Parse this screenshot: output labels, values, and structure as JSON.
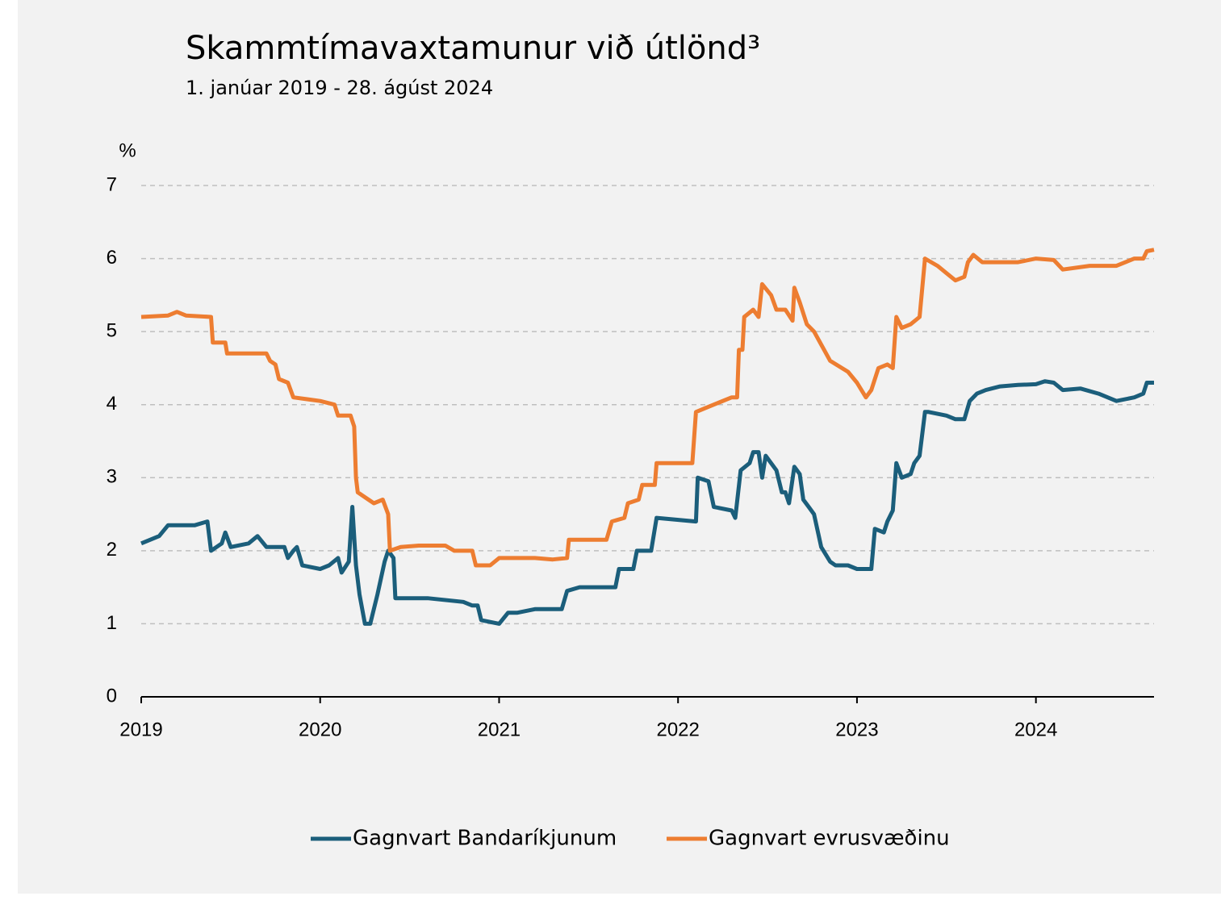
{
  "chart_data": {
    "type": "line",
    "title": "Skammtímavaxtamunur við útlönd³",
    "subtitle": "1. janúar 2019 - 28. ágúst 2024",
    "y_label": "%",
    "xlim": [
      2019,
      2024.66
    ],
    "xticks": [
      2019,
      2020,
      2021,
      2022,
      2023,
      2024
    ],
    "ylim": [
      0,
      7
    ],
    "yticks": [
      0,
      1,
      2,
      3,
      4,
      5,
      6,
      7
    ],
    "grid": true,
    "legend": "bottom",
    "series": [
      {
        "name": "Gagnvart Bandaríkjunum",
        "color": "#1b5e7b",
        "x": [
          2019.0,
          2019.1,
          2019.15,
          2019.3,
          2019.37,
          2019.39,
          2019.45,
          2019.47,
          2019.5,
          2019.6,
          2019.65,
          2019.7,
          2019.8,
          2019.82,
          2019.85,
          2019.87,
          2019.9,
          2020.0,
          2020.05,
          2020.1,
          2020.12,
          2020.16,
          2020.18,
          2020.2,
          2020.22,
          2020.25,
          2020.28,
          2020.32,
          2020.36,
          2020.38,
          2020.41,
          2020.42,
          2020.6,
          2020.8,
          2020.85,
          2020.88,
          2020.9,
          2021.0,
          2021.05,
          2021.1,
          2021.2,
          2021.35,
          2021.38,
          2021.45,
          2021.65,
          2021.67,
          2021.75,
          2021.77,
          2021.85,
          2021.88,
          2022.1,
          2022.11,
          2022.17,
          2022.2,
          2022.3,
          2022.32,
          2022.35,
          2022.4,
          2022.42,
          2022.45,
          2022.47,
          2022.49,
          2022.55,
          2022.58,
          2022.6,
          2022.62,
          2022.65,
          2022.68,
          2022.7,
          2022.73,
          2022.76,
          2022.8,
          2022.85,
          2022.88,
          2022.95,
          2023.0,
          2023.08,
          2023.1,
          2023.15,
          2023.17,
          2023.2,
          2023.22,
          2023.25,
          2023.3,
          2023.32,
          2023.35,
          2023.38,
          2023.4,
          2023.5,
          2023.55,
          2023.6,
          2023.63,
          2023.67,
          2023.72,
          2023.8,
          2023.9,
          2024.0,
          2024.05,
          2024.1,
          2024.15,
          2024.25,
          2024.35,
          2024.45,
          2024.55,
          2024.6,
          2024.62,
          2024.66
        ],
        "values": [
          2.1,
          2.2,
          2.35,
          2.35,
          2.4,
          2.0,
          2.1,
          2.25,
          2.05,
          2.1,
          2.2,
          2.05,
          2.05,
          1.9,
          2.0,
          2.05,
          1.8,
          1.75,
          1.8,
          1.9,
          1.7,
          1.85,
          2.6,
          1.8,
          1.4,
          1.0,
          1.0,
          1.4,
          1.85,
          2.0,
          1.9,
          1.35,
          1.35,
          1.3,
          1.25,
          1.25,
          1.05,
          1.0,
          1.15,
          1.15,
          1.2,
          1.2,
          1.45,
          1.5,
          1.5,
          1.75,
          1.75,
          2.0,
          2.0,
          2.45,
          2.4,
          3.0,
          2.95,
          2.6,
          2.55,
          2.45,
          3.1,
          3.2,
          3.35,
          3.35,
          3.0,
          3.3,
          3.1,
          2.8,
          2.8,
          2.65,
          3.15,
          3.05,
          2.7,
          2.6,
          2.5,
          2.05,
          1.85,
          1.8,
          1.8,
          1.75,
          1.75,
          2.3,
          2.25,
          2.4,
          2.55,
          3.2,
          3.0,
          3.05,
          3.2,
          3.3,
          3.9,
          3.9,
          3.85,
          3.8,
          3.8,
          4.05,
          4.15,
          4.2,
          4.25,
          4.27,
          4.28,
          4.32,
          4.3,
          4.2,
          4.22,
          4.15,
          4.05,
          4.1,
          4.15,
          4.3,
          4.3
        ]
      },
      {
        "name": "Gagnvart evrusvæðinu",
        "color": "#ed7d31",
        "x": [
          2019.0,
          2019.15,
          2019.2,
          2019.25,
          2019.39,
          2019.4,
          2019.47,
          2019.48,
          2019.6,
          2019.7,
          2019.72,
          2019.75,
          2019.77,
          2019.82,
          2019.85,
          2020.0,
          2020.08,
          2020.1,
          2020.17,
          2020.19,
          2020.2,
          2020.21,
          2020.27,
          2020.3,
          2020.35,
          2020.38,
          2020.39,
          2020.45,
          2020.55,
          2020.7,
          2020.75,
          2020.85,
          2020.87,
          2020.95,
          2021.0,
          2021.2,
          2021.3,
          2021.38,
          2021.39,
          2021.6,
          2021.63,
          2021.7,
          2021.72,
          2021.78,
          2021.8,
          2021.87,
          2021.88,
          2022.0,
          2022.08,
          2022.1,
          2022.15,
          2022.2,
          2022.3,
          2022.33,
          2022.34,
          2022.36,
          2022.37,
          2022.42,
          2022.45,
          2022.47,
          2022.52,
          2022.55,
          2022.6,
          2022.64,
          2022.65,
          2022.68,
          2022.72,
          2022.76,
          2022.85,
          2022.95,
          2023.0,
          2023.05,
          2023.08,
          2023.12,
          2023.17,
          2023.2,
          2023.22,
          2023.25,
          2023.3,
          2023.35,
          2023.38,
          2023.45,
          2023.5,
          2023.55,
          2023.6,
          2023.62,
          2023.65,
          2023.7,
          2023.8,
          2023.9,
          2024.0,
          2024.1,
          2024.15,
          2024.3,
          2024.45,
          2024.55,
          2024.6,
          2024.62,
          2024.66
        ],
        "values": [
          5.2,
          5.22,
          5.27,
          5.22,
          5.2,
          4.85,
          4.85,
          4.7,
          4.7,
          4.7,
          4.6,
          4.55,
          4.35,
          4.3,
          4.1,
          4.05,
          4.0,
          3.85,
          3.85,
          3.7,
          3.0,
          2.8,
          2.7,
          2.65,
          2.7,
          2.5,
          2.0,
          2.05,
          2.07,
          2.07,
          2.0,
          2.0,
          1.8,
          1.8,
          1.9,
          1.9,
          1.88,
          1.9,
          2.15,
          2.15,
          2.4,
          2.45,
          2.65,
          2.7,
          2.9,
          2.9,
          3.2,
          3.2,
          3.2,
          3.9,
          3.95,
          4.0,
          4.1,
          4.1,
          4.75,
          4.75,
          5.2,
          5.3,
          5.2,
          5.65,
          5.5,
          5.3,
          5.3,
          5.15,
          5.6,
          5.4,
          5.1,
          5.0,
          4.6,
          4.45,
          4.3,
          4.1,
          4.2,
          4.5,
          4.55,
          4.5,
          5.2,
          5.05,
          5.1,
          5.2,
          6.0,
          5.9,
          5.8,
          5.7,
          5.75,
          5.95,
          6.05,
          5.95,
          5.95,
          5.95,
          6.0,
          5.98,
          5.85,
          5.9,
          5.9,
          6.0,
          6.0,
          6.1,
          6.12
        ]
      }
    ]
  }
}
